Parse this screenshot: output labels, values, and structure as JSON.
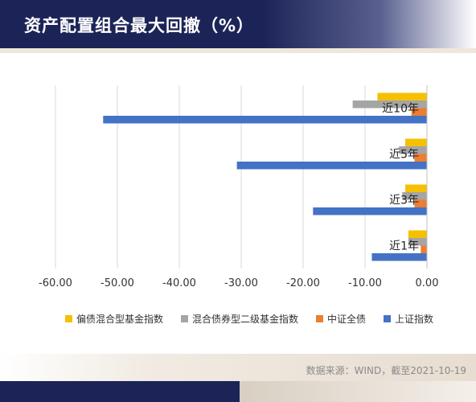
{
  "title": "资产配置组合最大回撤（%）",
  "source": "数据来源：WIND，截至2021-10-19",
  "chart_data": {
    "type": "bar",
    "orientation": "horizontal",
    "categories": [
      "近10年",
      "近5年",
      "近3年",
      "近1年"
    ],
    "series": [
      {
        "name": "偏债混合型基金指数",
        "color": "#f5c000",
        "values": [
          -8.0,
          -3.5,
          -3.5,
          -3.0
        ]
      },
      {
        "name": "混合债券型二级基金指数",
        "color": "#a5a5a5",
        "values": [
          -12.0,
          -4.5,
          -4.0,
          -3.0
        ]
      },
      {
        "name": "中证全债",
        "color": "#ed7d31",
        "values": [
          -2.5,
          -2.0,
          -2.0,
          -1.0
        ]
      },
      {
        "name": "上证指数",
        "color": "#4472c4",
        "values": [
          -52.3,
          -30.7,
          -18.4,
          -8.9
        ]
      }
    ],
    "xlim": [
      -60,
      0
    ],
    "xticks": [
      "-60.00",
      "-50.00",
      "-40.00",
      "-30.00",
      "-20.00",
      "-10.00",
      "0.00"
    ],
    "grid": true,
    "legend_position": "bottom"
  }
}
